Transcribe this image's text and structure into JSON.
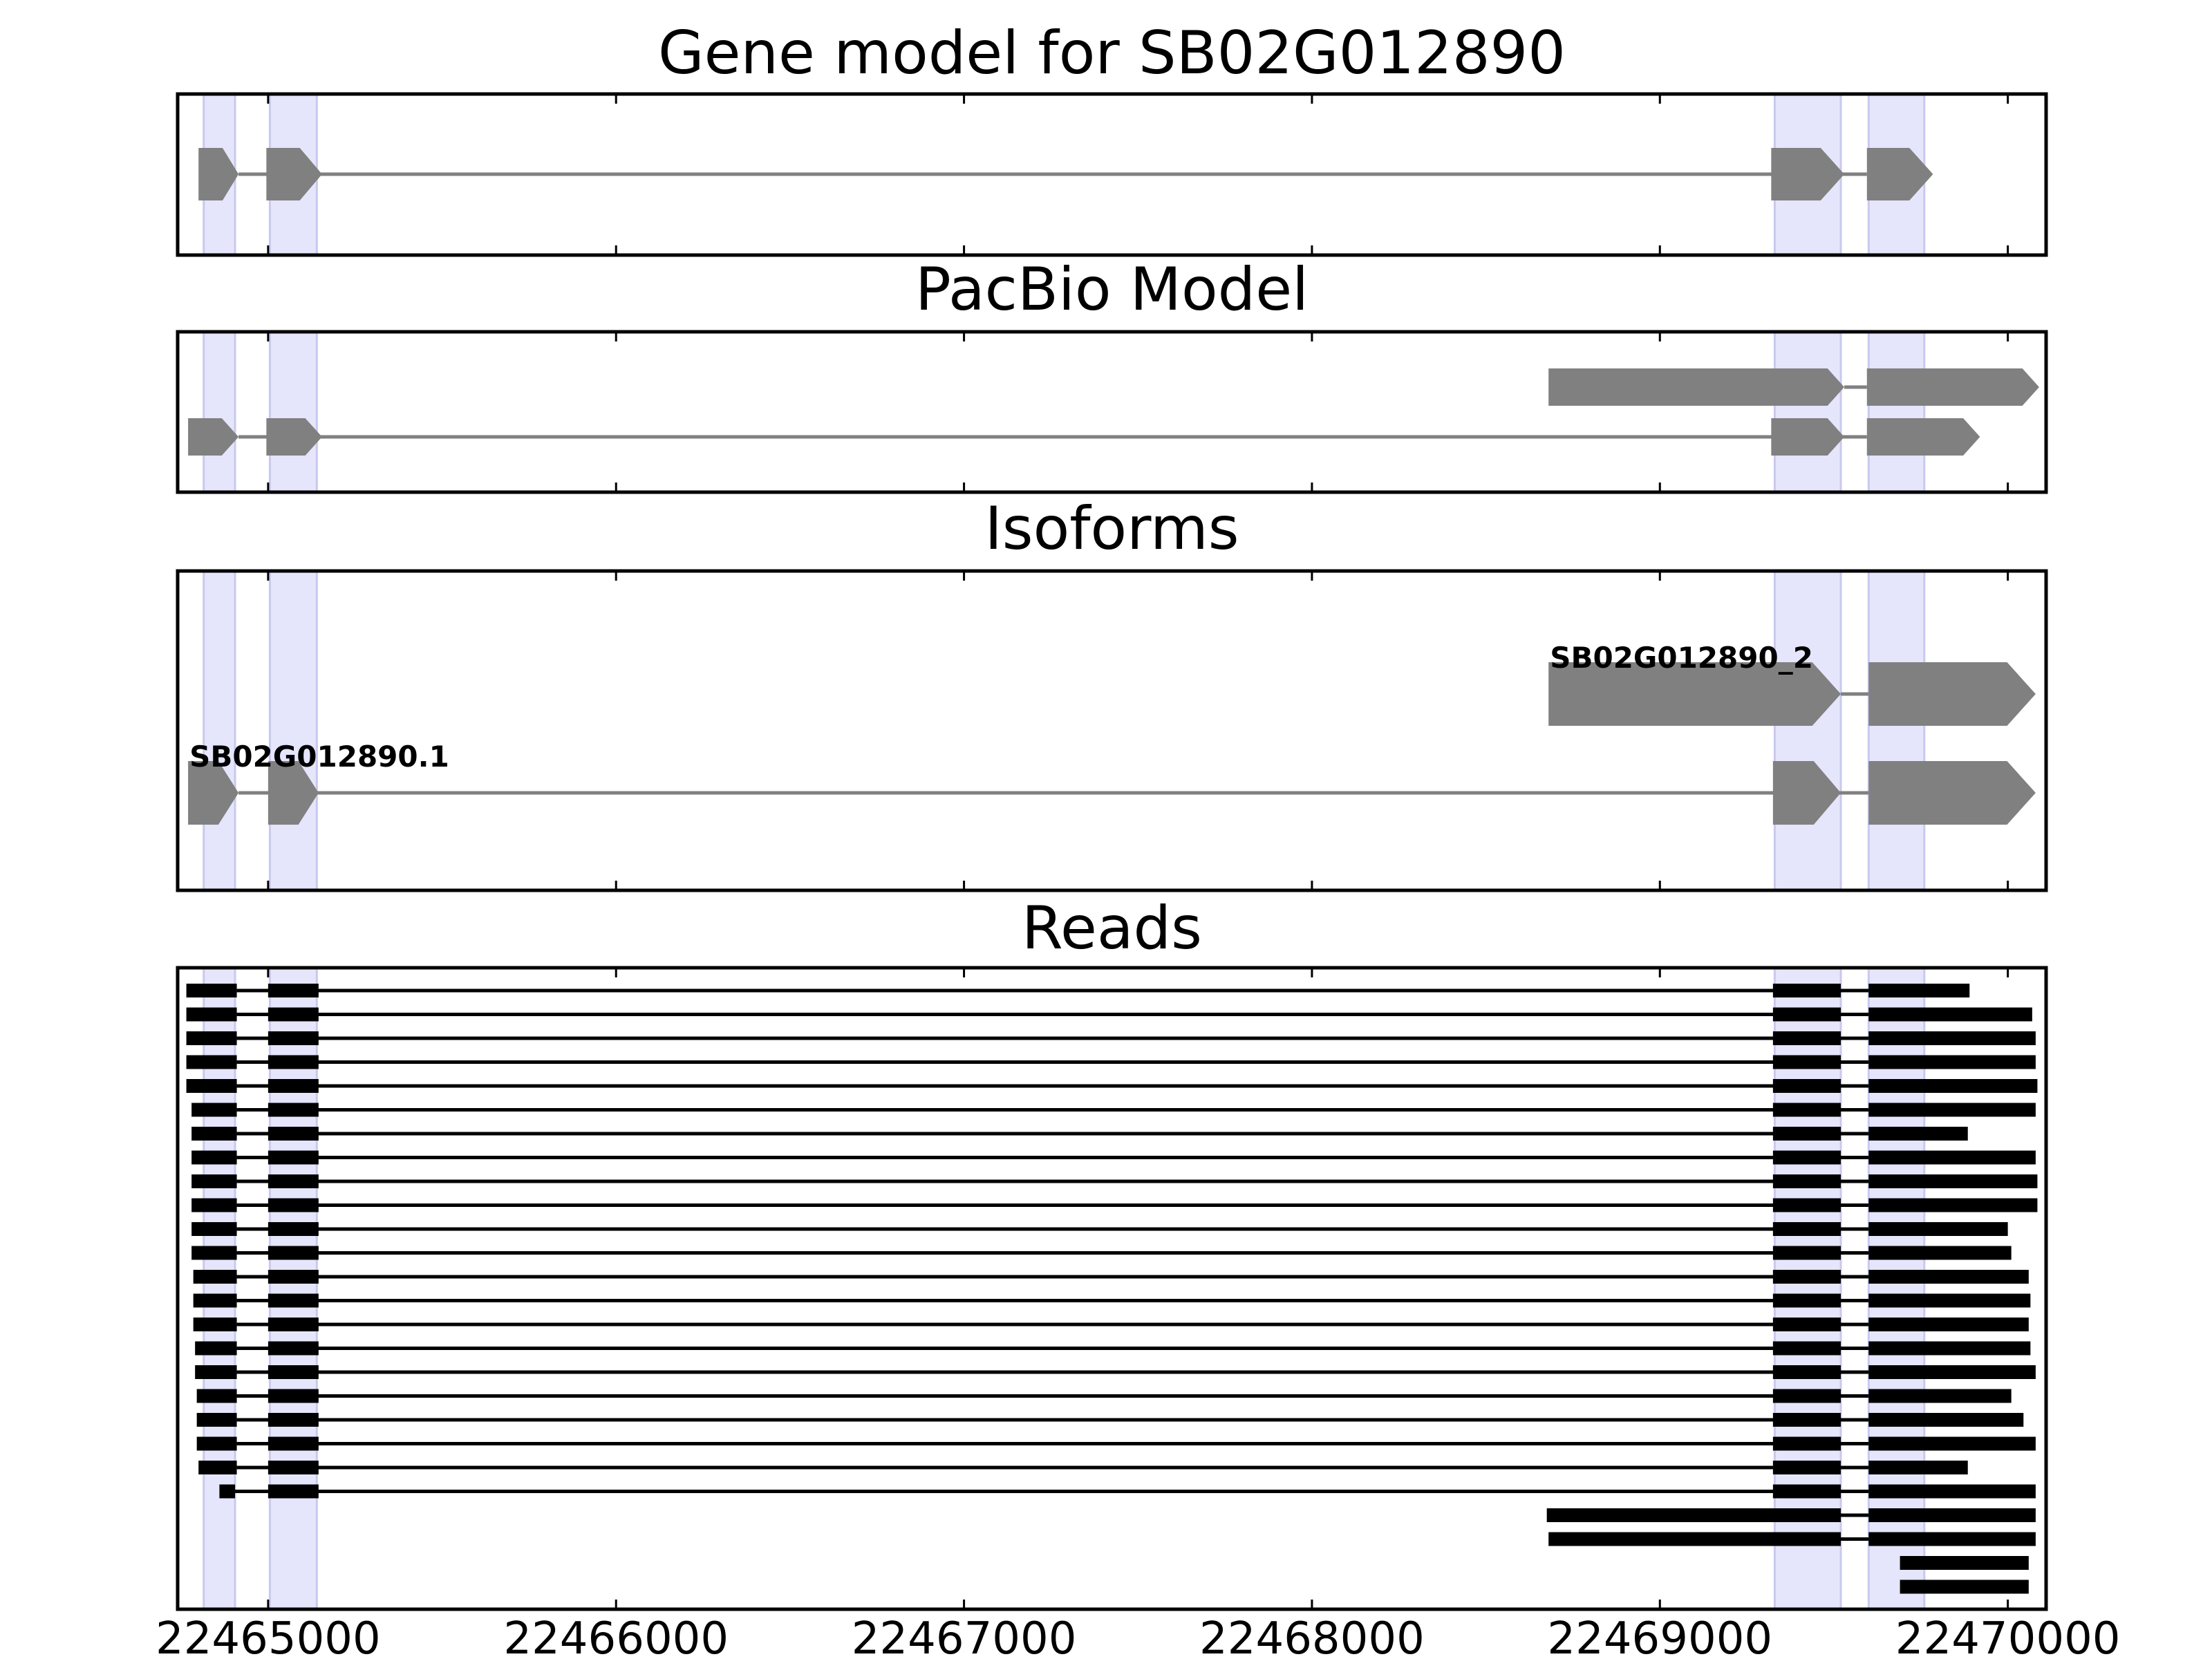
{
  "chart_data": {
    "type": "gene-track",
    "xlim": [
      22464740,
      22470110
    ],
    "x_ticks": [
      22465000,
      22466000,
      22467000,
      22468000,
      22469000,
      22470000
    ],
    "x_tick_labels": [
      "22465000",
      "22466000",
      "22467000",
      "22468000",
      "22469000",
      "22470000"
    ],
    "highlight_regions": [
      [
        22464815,
        22464905
      ],
      [
        22465005,
        22465140
      ],
      [
        22469330,
        22469520
      ],
      [
        22469600,
        22469760
      ]
    ],
    "colors": {
      "feature": "#808080",
      "read": "#000000",
      "highlight": "#e5e5fc",
      "highlight_edge": "#c9c9ee"
    },
    "panels": [
      {
        "title": "Gene model for SB02G012890",
        "kind": "model",
        "rows": [
          {
            "exons": [
              [
                22464800,
                22464915
              ],
              [
                22464995,
                22465155
              ],
              [
                22469320,
                22469530
              ],
              [
                22469595,
                22469785
              ]
            ]
          }
        ]
      },
      {
        "title": "PacBio Model",
        "kind": "model",
        "rows": [
          {
            "exons": [
              [
                22468680,
                22469530
              ],
              [
                22469595,
                22470090
              ]
            ]
          },
          {
            "exons": [
              [
                22464770,
                22464915
              ],
              [
                22464995,
                22465155
              ],
              [
                22469320,
                22469530
              ],
              [
                22469595,
                22469920
              ]
            ]
          }
        ]
      },
      {
        "title": "Isoforms",
        "kind": "isoform",
        "rows": [
          {
            "label": "SB02G012890_2",
            "exons": [
              [
                22468680,
                22469520
              ],
              [
                22469600,
                22470080
              ]
            ]
          },
          {
            "label": "SB02G012890.1",
            "exons": [
              [
                22464770,
                22464915
              ],
              [
                22465000,
                22465145
              ],
              [
                22469325,
                22469520
              ],
              [
                22469600,
                22470080
              ]
            ]
          }
        ]
      },
      {
        "title": "Reads",
        "kind": "reads",
        "rows": [
          {
            "exons": [
              [
                22464765,
                22464910
              ],
              [
                22465000,
                22465145
              ],
              [
                22469325,
                22469520
              ],
              [
                22469600,
                22469890
              ]
            ]
          },
          {
            "exons": [
              [
                22464765,
                22464910
              ],
              [
                22465000,
                22465145
              ],
              [
                22469325,
                22469520
              ],
              [
                22469600,
                22470070
              ]
            ]
          },
          {
            "exons": [
              [
                22464765,
                22464910
              ],
              [
                22465000,
                22465145
              ],
              [
                22469325,
                22469520
              ],
              [
                22469600,
                22470080
              ]
            ]
          },
          {
            "exons": [
              [
                22464765,
                22464910
              ],
              [
                22465000,
                22465145
              ],
              [
                22469325,
                22469520
              ],
              [
                22469600,
                22470080
              ]
            ]
          },
          {
            "exons": [
              [
                22464765,
                22464910
              ],
              [
                22465000,
                22465145
              ],
              [
                22469325,
                22469520
              ],
              [
                22469600,
                22470085
              ]
            ]
          },
          {
            "exons": [
              [
                22464780,
                22464910
              ],
              [
                22465000,
                22465145
              ],
              [
                22469325,
                22469520
              ],
              [
                22469600,
                22470080
              ]
            ]
          },
          {
            "exons": [
              [
                22464780,
                22464910
              ],
              [
                22465000,
                22465145
              ],
              [
                22469325,
                22469520
              ],
              [
                22469600,
                22469885
              ]
            ]
          },
          {
            "exons": [
              [
                22464780,
                22464910
              ],
              [
                22465000,
                22465145
              ],
              [
                22469325,
                22469520
              ],
              [
                22469600,
                22470080
              ]
            ]
          },
          {
            "exons": [
              [
                22464780,
                22464910
              ],
              [
                22465000,
                22465145
              ],
              [
                22469325,
                22469520
              ],
              [
                22469600,
                22470085
              ]
            ]
          },
          {
            "exons": [
              [
                22464780,
                22464910
              ],
              [
                22465000,
                22465145
              ],
              [
                22469325,
                22469520
              ],
              [
                22469600,
                22470085
              ]
            ]
          },
          {
            "exons": [
              [
                22464780,
                22464910
              ],
              [
                22465000,
                22465145
              ],
              [
                22469325,
                22469520
              ],
              [
                22469600,
                22470000
              ]
            ]
          },
          {
            "exons": [
              [
                22464780,
                22464910
              ],
              [
                22465000,
                22465145
              ],
              [
                22469325,
                22469520
              ],
              [
                22469600,
                22470010
              ]
            ]
          },
          {
            "exons": [
              [
                22464785,
                22464910
              ],
              [
                22465000,
                22465145
              ],
              [
                22469325,
                22469520
              ],
              [
                22469600,
                22470060
              ]
            ]
          },
          {
            "exons": [
              [
                22464785,
                22464910
              ],
              [
                22465000,
                22465145
              ],
              [
                22469325,
                22469520
              ],
              [
                22469600,
                22470065
              ]
            ]
          },
          {
            "exons": [
              [
                22464785,
                22464910
              ],
              [
                22465000,
                22465145
              ],
              [
                22469325,
                22469520
              ],
              [
                22469600,
                22470060
              ]
            ]
          },
          {
            "exons": [
              [
                22464790,
                22464910
              ],
              [
                22465000,
                22465145
              ],
              [
                22469325,
                22469520
              ],
              [
                22469600,
                22470065
              ]
            ]
          },
          {
            "exons": [
              [
                22464790,
                22464910
              ],
              [
                22465000,
                22465145
              ],
              [
                22469325,
                22469520
              ],
              [
                22469600,
                22470080
              ]
            ]
          },
          {
            "exons": [
              [
                22464795,
                22464910
              ],
              [
                22465000,
                22465145
              ],
              [
                22469325,
                22469520
              ],
              [
                22469600,
                22470010
              ]
            ]
          },
          {
            "exons": [
              [
                22464795,
                22464910
              ],
              [
                22465000,
                22465145
              ],
              [
                22469325,
                22469520
              ],
              [
                22469600,
                22470045
              ]
            ]
          },
          {
            "exons": [
              [
                22464795,
                22464910
              ],
              [
                22465000,
                22465145
              ],
              [
                22469325,
                22469520
              ],
              [
                22469600,
                22470080
              ]
            ]
          },
          {
            "exons": [
              [
                22464800,
                22464910
              ],
              [
                22465000,
                22465145
              ],
              [
                22469325,
                22469520
              ],
              [
                22469600,
                22469885
              ]
            ]
          },
          {
            "exons": [
              [
                22464860,
                22464905
              ],
              [
                22465000,
                22465145
              ],
              [
                22469325,
                22469520
              ],
              [
                22469600,
                22470080
              ]
            ]
          },
          {
            "exons": [
              [
                22468675,
                22469520
              ],
              [
                22469600,
                22470080
              ]
            ]
          },
          {
            "exons": [
              [
                22468680,
                22469520
              ],
              [
                22469600,
                22470080
              ]
            ]
          },
          {
            "exons": [
              [
                22469690,
                22470060
              ]
            ]
          },
          {
            "exons": [
              [
                22469690,
                22470060
              ]
            ]
          }
        ]
      }
    ]
  }
}
